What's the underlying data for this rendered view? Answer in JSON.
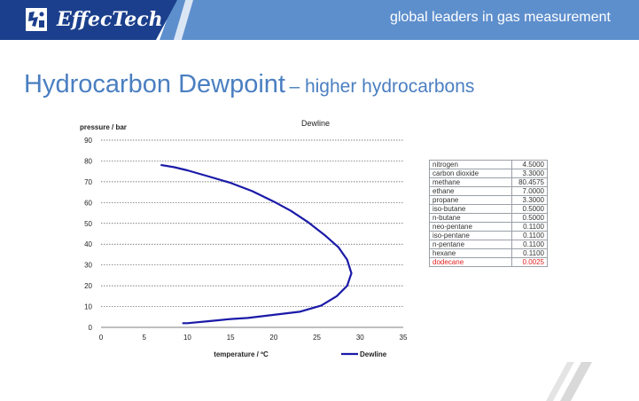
{
  "header": {
    "brand": "EffecTech",
    "tagline": "global leaders in gas measurement"
  },
  "slide": {
    "title_main": "Hydrocarbon Dewpoint",
    "title_sub": "– higher hydrocarbons"
  },
  "chart_data": {
    "type": "line",
    "title": "Dewline",
    "xlabel": "temperature / ºC",
    "ylabel": "pressure / bar",
    "xlim": [
      0,
      35
    ],
    "ylim": [
      0,
      90
    ],
    "xticks": [
      0,
      5,
      10,
      15,
      20,
      25,
      30,
      35
    ],
    "yticks": [
      0,
      10,
      20,
      30,
      40,
      50,
      60,
      70,
      80,
      90
    ],
    "grid": "horizontal",
    "legend": "bottom-right",
    "series": [
      {
        "name": "Dewline",
        "color": "#1a1aa8",
        "points": [
          [
            7,
            78
          ],
          [
            8.5,
            77
          ],
          [
            10,
            75.5
          ],
          [
            12.5,
            72.5
          ],
          [
            15,
            69.5
          ],
          [
            17.5,
            65.5
          ],
          [
            20,
            60.5
          ],
          [
            22,
            56
          ],
          [
            24,
            50.5
          ],
          [
            26,
            44
          ],
          [
            27.5,
            38.5
          ],
          [
            28.5,
            32.5
          ],
          [
            29,
            26
          ],
          [
            28.5,
            20
          ],
          [
            27.3,
            15
          ],
          [
            25.5,
            10.5
          ],
          [
            23,
            7.5
          ],
          [
            20,
            6
          ],
          [
            17,
            4.5
          ],
          [
            15,
            4
          ],
          [
            12.5,
            3
          ],
          [
            10,
            2
          ],
          [
            9.5,
            2
          ]
        ]
      }
    ]
  },
  "composition": {
    "rows": [
      {
        "name": "nitrogen",
        "value": "4.5000"
      },
      {
        "name": "carbon dioxide",
        "value": "3.3000"
      },
      {
        "name": "methane",
        "value": "80.4575"
      },
      {
        "name": "ethane",
        "value": "7.0000"
      },
      {
        "name": "propane",
        "value": "3.3000"
      },
      {
        "name": "iso-butane",
        "value": "0.5000"
      },
      {
        "name": "n-butane",
        "value": "0.5000"
      },
      {
        "name": "neo-pentane",
        "value": "0.1100"
      },
      {
        "name": "iso-pentane",
        "value": "0.1100"
      },
      {
        "name": "n-pentane",
        "value": "0.1100"
      },
      {
        "name": "hexane",
        "value": "0.1100"
      },
      {
        "name": "dodecane",
        "value": "0.0025",
        "highlight": true
      }
    ]
  }
}
